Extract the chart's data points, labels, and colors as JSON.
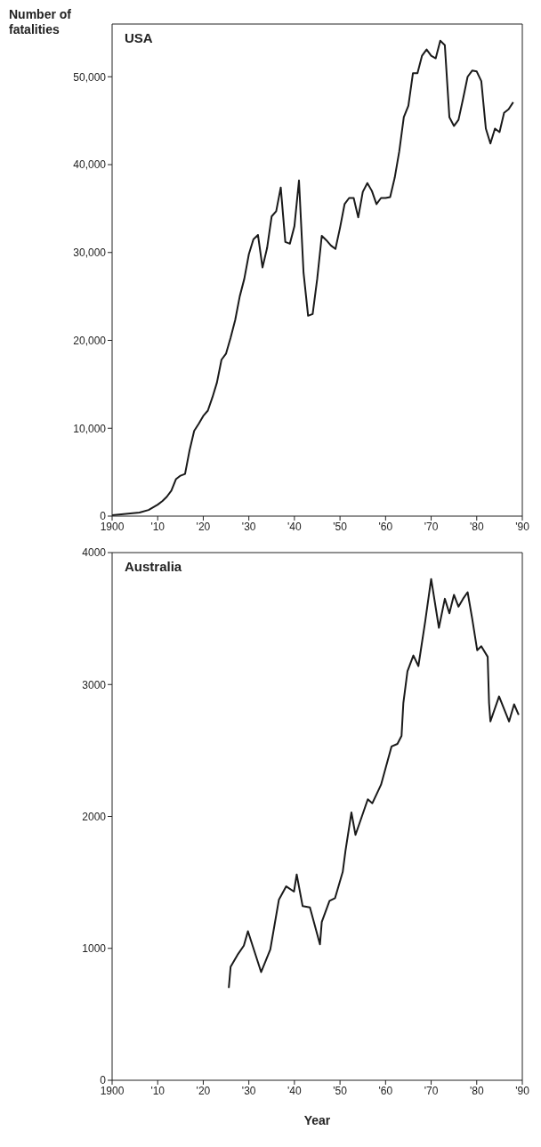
{
  "chart_data": [
    {
      "type": "line",
      "title": "USA",
      "ylabel": "Number of fatalities",
      "xlim": [
        1900,
        1990
      ],
      "ylim": [
        0,
        56000
      ],
      "xticks": [
        {
          "value": 1900,
          "label": "1900"
        },
        {
          "value": 1910,
          "label": "'10"
        },
        {
          "value": 1920,
          "label": "'20"
        },
        {
          "value": 1930,
          "label": "'30"
        },
        {
          "value": 1940,
          "label": "'40"
        },
        {
          "value": 1950,
          "label": "'50"
        },
        {
          "value": 1960,
          "label": "'60"
        },
        {
          "value": 1970,
          "label": "'70"
        },
        {
          "value": 1980,
          "label": "'80"
        },
        {
          "value": 1990,
          "label": "'90"
        }
      ],
      "yticks": [
        0,
        {
          "value": 10000,
          "label": "10,000"
        },
        {
          "value": 20000,
          "label": "20,000"
        },
        {
          "value": 30000,
          "label": "30,000"
        },
        {
          "value": 40000,
          "label": "40,000"
        },
        {
          "value": 50000,
          "label": "50,000"
        }
      ],
      "series": [
        {
          "color": "#1a1a1a",
          "x": [
            1900,
            1902,
            1904,
            1906,
            1908,
            1910,
            1911,
            1912,
            1913,
            1914,
            1915,
            1916,
            1917,
            1918,
            1919,
            1920,
            1921,
            1922,
            1923,
            1924,
            1925,
            1926,
            1927,
            1928,
            1929,
            1930,
            1931,
            1932,
            1933,
            1934,
            1935,
            1936,
            1937,
            1938,
            1939,
            1940,
            1941,
            1942,
            1943,
            1944,
            1945,
            1946,
            1947,
            1948,
            1949,
            1950,
            1951,
            1952,
            1953,
            1954,
            1955,
            1956,
            1957,
            1958,
            1959,
            1960,
            1961,
            1962,
            1963,
            1964,
            1965,
            1966,
            1967,
            1968,
            1969,
            1970,
            1971,
            1972,
            1973,
            1974,
            1975,
            1976,
            1977,
            1978,
            1979,
            1980,
            1981,
            1982,
            1983,
            1984,
            1985,
            1986,
            1987,
            1988
          ],
          "values": [
            100,
            200,
            300,
            400,
            700,
            1300,
            1700,
            2200,
            2900,
            4200,
            4600,
            4800,
            7500,
            9700,
            10500,
            11400,
            12000,
            13500,
            15200,
            17800,
            18500,
            20300,
            22300,
            25000,
            27000,
            29800,
            31500,
            32000,
            28300,
            30500,
            34100,
            34700,
            37400,
            31200,
            31000,
            33000,
            38200,
            27700,
            22800,
            23000,
            27000,
            31900,
            31400,
            30800,
            30400,
            32800,
            35500,
            36200,
            36200,
            34000,
            36900,
            37900,
            37000,
            35500,
            36200,
            36200,
            36300,
            38500,
            41500,
            45400,
            46700,
            50400,
            50400,
            52400,
            53100,
            52400,
            52100,
            54100,
            53600,
            45400,
            44400,
            45100,
            47500,
            50000,
            50700,
            50600,
            49500,
            44100,
            42400,
            44100,
            43700,
            45900,
            46300,
            47100
          ]
        }
      ]
    },
    {
      "type": "line",
      "title": "Australia",
      "xlabel": "Year",
      "xlim": [
        1900,
        1990
      ],
      "ylim": [
        0,
        4000
      ],
      "xticks": [
        {
          "value": 1900,
          "label": "1900"
        },
        {
          "value": 1910,
          "label": "'10"
        },
        {
          "value": 1920,
          "label": "'20"
        },
        {
          "value": 1930,
          "label": "'30"
        },
        {
          "value": 1940,
          "label": "'40"
        },
        {
          "value": 1950,
          "label": "'50"
        },
        {
          "value": 1960,
          "label": "'60"
        },
        {
          "value": 1970,
          "label": "'70"
        },
        {
          "value": 1980,
          "label": "'80"
        },
        {
          "value": 1990,
          "label": "'90"
        }
      ],
      "yticks": [
        0,
        1000,
        2000,
        3000,
        4000
      ],
      "series": [
        {
          "color": "#1a1a1a",
          "x": [
            1925.6,
            1926,
            1927.5,
            1928.9,
            1929.8,
            1932.7,
            1934.7,
            1936.6,
            1938.2,
            1939.9,
            1940.5,
            1941.8,
            1943.4,
            1945.6,
            1946,
            1947.7,
            1948.9,
            1950.6,
            1951.2,
            1952.5,
            1953.4,
            1956.1,
            1957.1,
            1959,
            1961.3,
            1962.6,
            1963.5,
            1963.9,
            1964.8,
            1966.1,
            1967.2,
            1968.7,
            1970,
            1971.7,
            1973,
            1974,
            1975,
            1976,
            1977,
            1978,
            1979,
            1980.1,
            1981,
            1982.4,
            1982.7,
            1983,
            1984.9,
            1987.1,
            1988.2,
            1989.2
          ],
          "values": [
            700,
            860,
            950,
            1020,
            1130,
            820,
            990,
            1370,
            1470,
            1430,
            1560,
            1320,
            1310,
            1030,
            1200,
            1360,
            1380,
            1580,
            1740,
            2030,
            1860,
            2130,
            2100,
            2240,
            2530,
            2550,
            2610,
            2860,
            3100,
            3220,
            3140,
            3480,
            3800,
            3430,
            3650,
            3540,
            3680,
            3590,
            3650,
            3700,
            3500,
            3260,
            3290,
            3210,
            2860,
            2720,
            2910,
            2720,
            2850,
            2770
          ]
        }
      ]
    }
  ]
}
